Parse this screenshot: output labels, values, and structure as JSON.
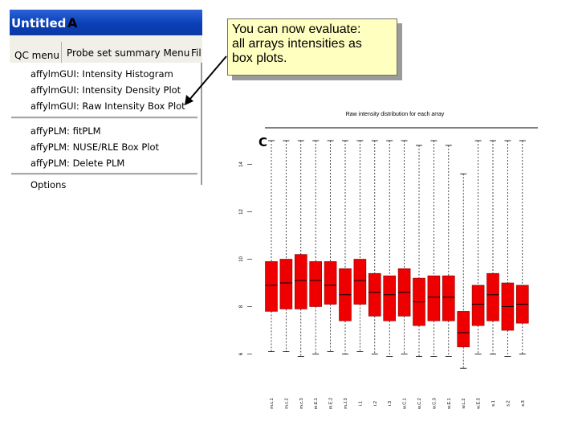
{
  "window": {
    "title": "Untitled",
    "panel_letter": "A",
    "menu_tabs": [
      "QC menu",
      "Probe set summary Menu",
      "Fil"
    ],
    "menu_items": [
      "affylmGUI: Intensity Histogram",
      "affylmGUI: Intensity Density Plot",
      "affylmGUI: Raw Intensity Box Plot",
      "affyPLM: fitPLM",
      "affyPLM: NUSE/RLE Box Plot",
      "affyPLM: Delete PLM",
      "Options"
    ]
  },
  "callout": {
    "line1": "You can now evaluate:",
    "line2": "all arrays intensities as",
    "line3": "box plots."
  },
  "chart_data": {
    "type": "boxplot",
    "title": "Raw intensity distribution for each array",
    "panel_letter": "C",
    "ylim": [
      5,
      15
    ],
    "y_ticks": [
      6,
      8,
      10,
      12,
      14
    ],
    "y_tick_labels": [
      "6",
      "8",
      "10",
      "12",
      "14"
    ],
    "categories": [
      "m.c.1",
      "m.c.2",
      "m.c.3",
      "m.E.1",
      "m.E.2",
      "m.J.3",
      "i.1",
      "i.2",
      "i.3",
      "w.C.1",
      "w.C.2",
      "w.C.3",
      "w.E.1",
      "w.L.2",
      "w.E.3",
      "s.1",
      "s.2",
      "s.3"
    ],
    "boxes": [
      {
        "min": 6.1,
        "q1": 7.8,
        "median": 8.9,
        "q3": 9.9,
        "max": 15.0
      },
      {
        "min": 6.1,
        "q1": 7.9,
        "median": 9.0,
        "q3": 10.0,
        "max": 15.0
      },
      {
        "min": 5.9,
        "q1": 7.9,
        "median": 9.1,
        "q3": 10.2,
        "max": 15.0
      },
      {
        "min": 6.0,
        "q1": 8.0,
        "median": 9.1,
        "q3": 9.9,
        "max": 15.0
      },
      {
        "min": 6.1,
        "q1": 8.1,
        "median": 8.9,
        "q3": 9.9,
        "max": 15.0
      },
      {
        "min": 6.0,
        "q1": 7.4,
        "median": 8.5,
        "q3": 9.6,
        "max": 15.0
      },
      {
        "min": 6.1,
        "q1": 8.1,
        "median": 9.1,
        "q3": 10.0,
        "max": 15.0
      },
      {
        "min": 6.0,
        "q1": 7.6,
        "median": 8.6,
        "q3": 9.4,
        "max": 15.0
      },
      {
        "min": 5.9,
        "q1": 7.4,
        "median": 8.5,
        "q3": 9.3,
        "max": 15.0
      },
      {
        "min": 6.0,
        "q1": 7.6,
        "median": 8.6,
        "q3": 9.6,
        "max": 15.0
      },
      {
        "min": 5.9,
        "q1": 7.2,
        "median": 8.2,
        "q3": 9.2,
        "max": 14.8
      },
      {
        "min": 5.9,
        "q1": 7.4,
        "median": 8.4,
        "q3": 9.3,
        "max": 15.0
      },
      {
        "min": 5.9,
        "q1": 7.4,
        "median": 8.4,
        "q3": 9.3,
        "max": 14.8
      },
      {
        "min": 5.4,
        "q1": 6.3,
        "median": 6.9,
        "q3": 7.8,
        "max": 13.6
      },
      {
        "min": 6.0,
        "q1": 7.2,
        "median": 8.1,
        "q3": 8.9,
        "max": 15.0
      },
      {
        "min": 6.0,
        "q1": 7.4,
        "median": 8.5,
        "q3": 9.4,
        "max": 15.0
      },
      {
        "min": 5.9,
        "q1": 7.0,
        "median": 8.0,
        "q3": 9.0,
        "max": 15.0
      },
      {
        "min": 6.0,
        "q1": 7.3,
        "median": 8.1,
        "q3": 8.9,
        "max": 15.0
      }
    ],
    "box_color": "#ee0000",
    "grid": false
  },
  "colors": {
    "titlebar": "#0a3fb8",
    "callout_fill": "#ffffc0",
    "arrow": "#000000"
  }
}
